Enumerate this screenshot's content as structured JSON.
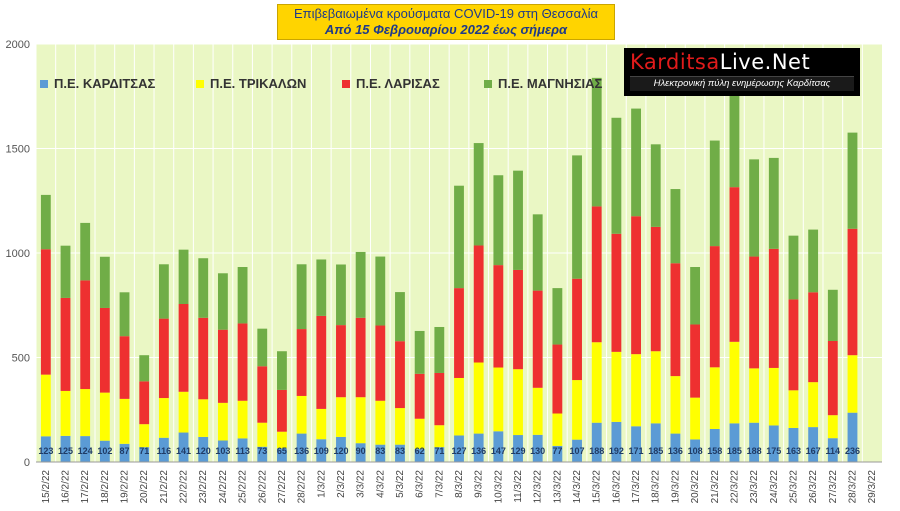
{
  "title": {
    "line1": "Επιβεβαιωμένα κρούσματα COVID-19 στη Θεσσαλία",
    "line2": "Από 15 Φεβρουαρίου 2022 έως σήμερα"
  },
  "logo": {
    "brand_red": "Karditsa",
    "brand_white": "Live",
    "brand_suffix": ".Net",
    "tagline": "Ηλεκτρονική πύλη ενημέρωσης Καρδίτσας"
  },
  "colors": {
    "plot_bg": "#eaf7c4",
    "karditsa": "#5b9bd5",
    "trikala": "#ffff00",
    "larisa": "#ee3030",
    "magnisia": "#70ad47",
    "gridline": "#ffffff"
  },
  "chart_data": {
    "type": "bar",
    "stacked": true,
    "ylim": [
      0,
      2000
    ],
    "yticks": [
      0,
      500,
      1000,
      1500,
      2000
    ],
    "grid": true,
    "legend_position": "top-left",
    "categories": [
      "15/2/22",
      "16/2/22",
      "17/2/22",
      "18/2/22",
      "19/2/22",
      "20/2/22",
      "21/2/22",
      "22/2/22",
      "23/2/22",
      "24/2/22",
      "25/2/22",
      "26/2/22",
      "27/2/22",
      "28/2/22",
      "1/3/22",
      "2/3/22",
      "3/3/22",
      "4/3/22",
      "5/3/22",
      "6/3/22",
      "7/3/22",
      "8/3/22",
      "9/3/22",
      "10/3/22",
      "11/3/22",
      "12/3/22",
      "13/3/22",
      "14/3/22",
      "15/3/22",
      "16/3/22",
      "17/3/22",
      "18/3/22",
      "19/3/22",
      "20/3/22",
      "21/3/22",
      "22/3/22",
      "23/3/22",
      "24/3/22",
      "25/3/22",
      "26/3/22",
      "27/3/22",
      "28/3/22",
      "29/3/22"
    ],
    "series": [
      {
        "name": "Π.Ε. ΚΑΡΔΙΤΣΑΣ",
        "values": [
          123,
          125,
          124,
          102,
          87,
          71,
          116,
          141,
          120,
          103,
          113,
          73,
          65,
          136,
          109,
          120,
          90,
          83,
          83,
          62,
          71,
          127,
          136,
          147,
          129,
          130,
          77,
          107,
          188,
          192,
          171,
          185,
          136,
          108,
          158,
          185,
          188,
          175,
          163,
          167,
          114,
          236,
          null
        ]
      },
      {
        "name": "Π.Ε. ΤΡΙΚΑΛΩΝ",
        "values": [
          295,
          215,
          225,
          230,
          215,
          110,
          190,
          195,
          180,
          180,
          180,
          115,
          80,
          180,
          145,
          190,
          220,
          210,
          175,
          145,
          105,
          275,
          340,
          305,
          315,
          225,
          155,
          285,
          385,
          335,
          345,
          345,
          275,
          200,
          295,
          390,
          260,
          275,
          180,
          215,
          110,
          275,
          null
        ]
      },
      {
        "name": "Π.Ε. ΛΑΡΙΣΑΣ",
        "values": [
          600,
          445,
          520,
          405,
          300,
          205,
          380,
          420,
          390,
          350,
          370,
          270,
          200,
          320,
          445,
          345,
          380,
          360,
          320,
          215,
          250,
          430,
          560,
          490,
          475,
          465,
          330,
          485,
          650,
          565,
          660,
          595,
          540,
          350,
          580,
          740,
          535,
          570,
          435,
          430,
          355,
          605,
          null
        ]
      },
      {
        "name": "Π.Ε. ΜΑΓΝΗΣΙΑΣ",
        "values": [
          260,
          250,
          275,
          245,
          210,
          125,
          260,
          260,
          285,
          270,
          270,
          180,
          185,
          310,
          270,
          290,
          315,
          330,
          235,
          205,
          220,
          490,
          490,
          430,
          475,
          365,
          270,
          590,
          615,
          555,
          515,
          395,
          355,
          275,
          505,
          540,
          465,
          435,
          305,
          300,
          245,
          460,
          null
        ]
      }
    ]
  }
}
